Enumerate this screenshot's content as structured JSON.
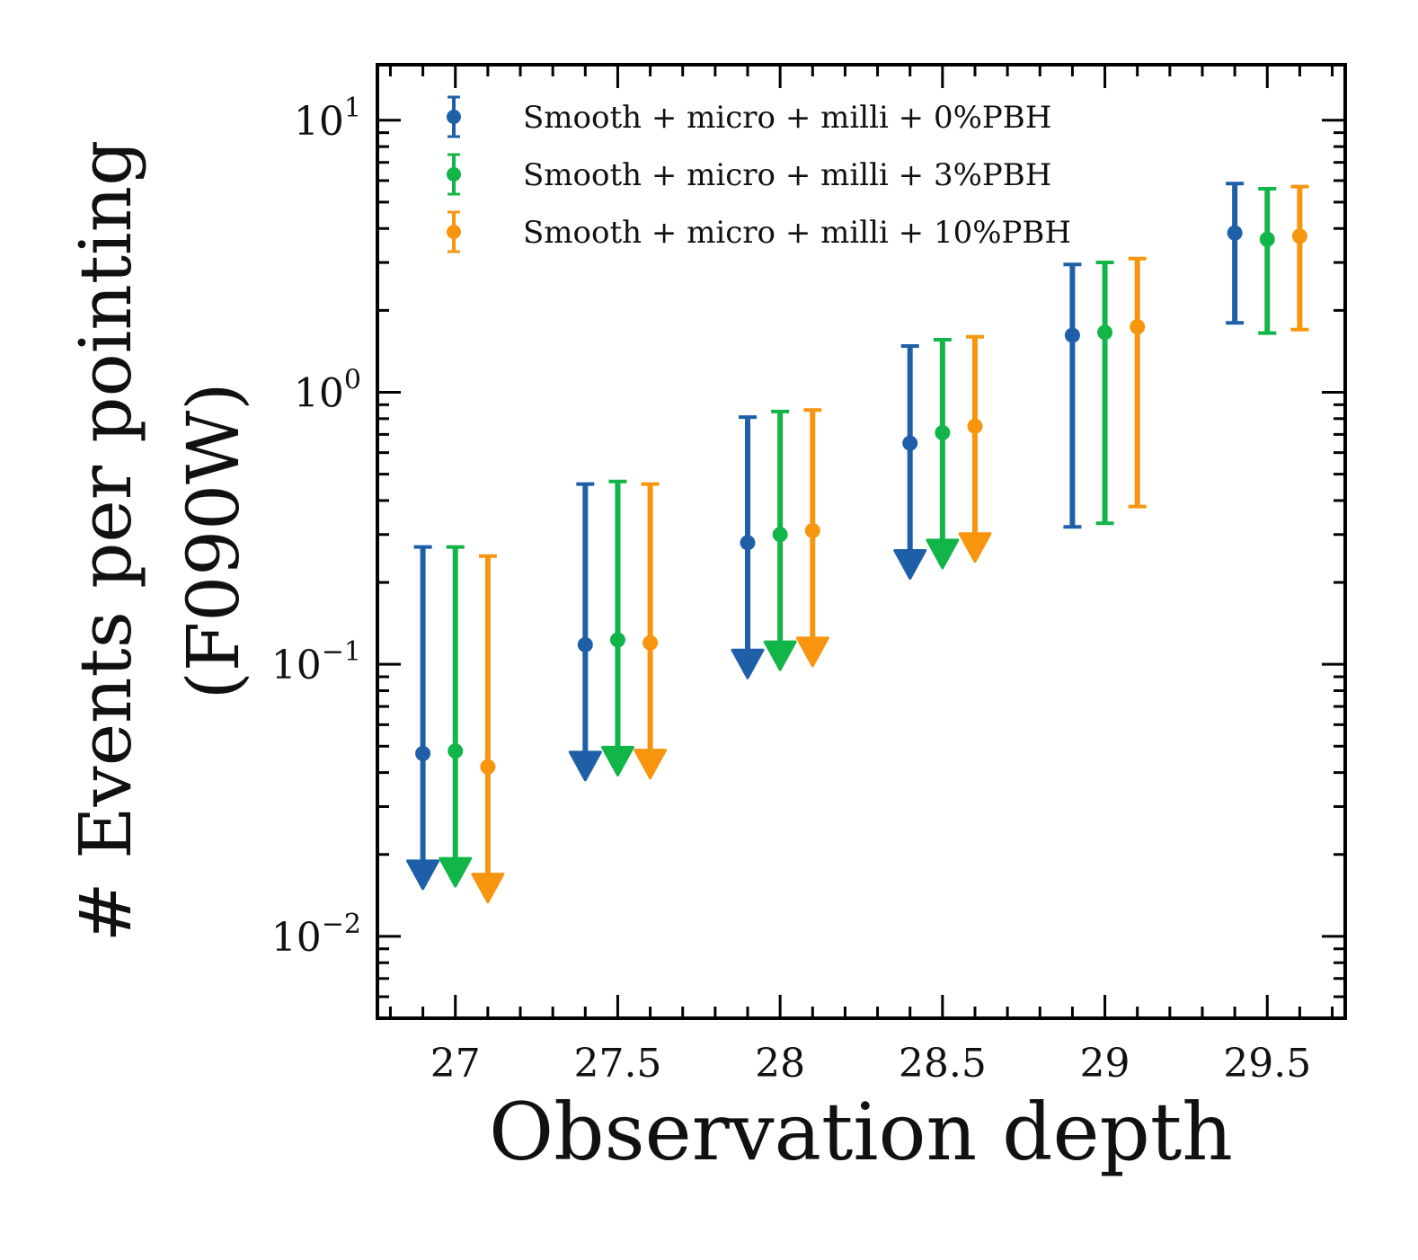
{
  "chart_data": {
    "type": "scatter",
    "xlabel": "Observation depth",
    "ylabel_line1": "# Events per pointing",
    "ylabel_line2": "(F090W)",
    "xscale": "linear",
    "yscale": "log",
    "xlim": [
      26.76,
      29.74
    ],
    "ylim": [
      0.005,
      16
    ],
    "xticks": [
      27,
      27.5,
      28,
      28.5,
      29,
      29.5
    ],
    "xtick_labels": [
      "27",
      "27.5",
      "28",
      "28.5",
      "29",
      "29.5"
    ],
    "ytick_labels": [
      {
        "value": 10,
        "base": "10",
        "exp": "1"
      },
      {
        "value": 1,
        "base": "10",
        "exp": "0"
      },
      {
        "value": 0.1,
        "base": "10",
        "exp": "−1"
      },
      {
        "value": 0.01,
        "base": "10",
        "exp": "−2"
      }
    ],
    "grid": false,
    "legend_position": "top-left",
    "series": [
      {
        "name": "Smooth + micro + milli + 0%PBH",
        "color": "#1f5fa8",
        "points": [
          {
            "x": 26.9,
            "y": 0.047,
            "upper": 0.27,
            "lower_limit": true
          },
          {
            "x": 27.4,
            "y": 0.118,
            "upper": 0.46,
            "lower_limit": true
          },
          {
            "x": 27.9,
            "y": 0.28,
            "upper": 0.81,
            "lower_limit": true
          },
          {
            "x": 28.4,
            "y": 0.65,
            "upper": 1.48,
            "lower_limit": true
          },
          {
            "x": 28.9,
            "y": 1.62,
            "upper": 2.95,
            "lower": 0.32,
            "lower_limit": false
          },
          {
            "x": 29.4,
            "y": 3.85,
            "upper": 5.85,
            "lower": 1.8,
            "lower_limit": false
          }
        ]
      },
      {
        "name": "Smooth + micro + milli + 3%PBH",
        "color": "#12b548",
        "points": [
          {
            "x": 27.0,
            "y": 0.048,
            "upper": 0.27,
            "lower_limit": true
          },
          {
            "x": 27.5,
            "y": 0.123,
            "upper": 0.47,
            "lower_limit": true
          },
          {
            "x": 28.0,
            "y": 0.3,
            "upper": 0.85,
            "lower_limit": true
          },
          {
            "x": 28.5,
            "y": 0.71,
            "upper": 1.56,
            "lower_limit": true
          },
          {
            "x": 29.0,
            "y": 1.66,
            "upper": 3.0,
            "lower": 0.33,
            "lower_limit": false
          },
          {
            "x": 29.5,
            "y": 3.65,
            "upper": 5.6,
            "lower": 1.65,
            "lower_limit": false
          }
        ]
      },
      {
        "name": "Smooth + micro + milli + 10%PBH",
        "color": "#f7950f",
        "points": [
          {
            "x": 27.1,
            "y": 0.042,
            "upper": 0.25,
            "lower_limit": true
          },
          {
            "x": 27.6,
            "y": 0.12,
            "upper": 0.46,
            "lower_limit": true
          },
          {
            "x": 28.1,
            "y": 0.31,
            "upper": 0.86,
            "lower_limit": true
          },
          {
            "x": 28.6,
            "y": 0.75,
            "upper": 1.6,
            "lower_limit": true
          },
          {
            "x": 29.1,
            "y": 1.74,
            "upper": 3.1,
            "lower": 0.38,
            "lower_limit": false
          },
          {
            "x": 29.6,
            "y": 3.75,
            "upper": 5.7,
            "lower": 1.7,
            "lower_limit": false
          }
        ]
      }
    ]
  }
}
